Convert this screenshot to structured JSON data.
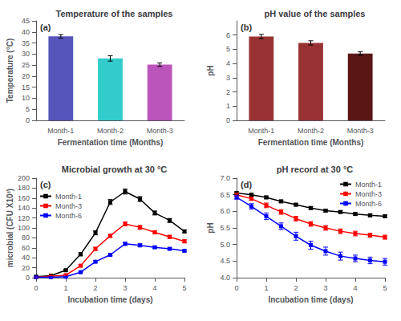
{
  "chart_data": [
    {
      "type": "bar",
      "title": "Temperature of the samples",
      "xlabel": "Fermentation time (Months)",
      "ylabel": "Temperature (°C)",
      "categories": [
        "Month-1",
        "Month-2",
        "Month-3"
      ],
      "values": [
        38.0,
        28.0,
        25.2
      ],
      "errors": [
        0.8,
        1.2,
        0.8
      ],
      "colors": [
        "#5555bb",
        "#33cccc",
        "#bb55bb"
      ],
      "ylim": [
        0,
        45
      ],
      "yticks": [
        0,
        5,
        10,
        15,
        20,
        25,
        30,
        35,
        40,
        45
      ],
      "grid": false,
      "annotation": "(a)"
    },
    {
      "type": "bar",
      "title": "pH value of the samples",
      "xlabel": "Fermentation time (Months)",
      "ylabel": "pH",
      "categories": [
        "Month-1",
        "Month-2",
        "Month-3"
      ],
      "values": [
        5.9,
        5.45,
        4.7
      ],
      "errors": [
        0.15,
        0.15,
        0.12
      ],
      "colors": [
        "#993333",
        "#993333",
        "#5a1515"
      ],
      "ylim": [
        0,
        7
      ],
      "yticks": [
        0,
        1,
        2,
        3,
        4,
        5,
        6
      ],
      "grid": false,
      "annotation": "(b)"
    },
    {
      "type": "line",
      "title": "Microbial growth at 30 °C",
      "xlabel": "Incubation time (days)",
      "ylabel": "microbial (CFU X10³)",
      "xlim": [
        0,
        5
      ],
      "ylim": [
        0,
        200
      ],
      "xticks": [
        0,
        1,
        2,
        3,
        4,
        5
      ],
      "yticks": [
        0,
        20,
        40,
        60,
        80,
        100,
        120,
        140,
        160,
        180,
        200
      ],
      "x": [
        0,
        0.5,
        1.0,
        1.5,
        2.0,
        2.5,
        3.0,
        3.5,
        4.0,
        4.5,
        5.0
      ],
      "marker": "square",
      "legend": "upper left",
      "grid": false,
      "annotation": "(c)",
      "series": [
        {
          "name": "Month-1",
          "color": "black",
          "values": [
            2,
            4,
            15,
            47,
            90,
            152,
            173,
            158,
            130,
            115,
            93
          ],
          "errors": [
            1,
            1,
            2,
            3,
            4,
            5,
            5,
            5,
            4,
            4,
            3
          ]
        },
        {
          "name": "Month-3",
          "color": "red",
          "values": [
            1,
            3,
            5,
            24,
            58,
            84,
            108,
            101,
            91,
            82,
            73
          ],
          "errors": [
            1,
            1,
            1,
            2,
            3,
            3,
            4,
            4,
            3,
            3,
            3
          ]
        },
        {
          "name": "Month-6",
          "color": "blue",
          "values": [
            1,
            1,
            2,
            11,
            32,
            46,
            68,
            65,
            61,
            58,
            54
          ],
          "errors": [
            1,
            1,
            1,
            1,
            2,
            2,
            3,
            3,
            2,
            2,
            2
          ]
        }
      ]
    },
    {
      "type": "line",
      "title": "pH record at 30 °C",
      "xlabel": "Incubation time (days)",
      "ylabel": "pH",
      "xlim": [
        0,
        5
      ],
      "ylim": [
        4.0,
        7.0
      ],
      "xticks": [
        0,
        1,
        2,
        3,
        4,
        5
      ],
      "yticks": [
        {
          "value": 4.0,
          "label": "4.0"
        },
        4.5,
        {
          "value": 5.0,
          "label": "5.0"
        },
        5.5,
        {
          "value": 6.0,
          "label": "6.0"
        },
        6.5,
        {
          "value": 7.0,
          "label": "7.0"
        }
      ],
      "x": [
        0,
        0.5,
        1.0,
        1.5,
        2.0,
        2.5,
        3.0,
        3.5,
        4.0,
        4.5,
        5.0
      ],
      "marker": "square",
      "legend": "upper right",
      "grid": false,
      "annotation": "(d)",
      "series": [
        {
          "name": "Month-1",
          "color": "black",
          "values": [
            6.55,
            6.5,
            6.42,
            6.3,
            6.2,
            6.1,
            6.02,
            5.98,
            5.92,
            5.88,
            5.85
          ],
          "errors": [
            0.04,
            0.04,
            0.04,
            0.04,
            0.04,
            0.04,
            0.04,
            0.04,
            0.04,
            0.04,
            0.04
          ]
        },
        {
          "name": "Month-3",
          "color": "red",
          "values": [
            6.5,
            6.38,
            6.18,
            5.98,
            5.78,
            5.62,
            5.5,
            5.4,
            5.33,
            5.28,
            5.22
          ],
          "errors": [
            0.04,
            0.05,
            0.07,
            0.07,
            0.07,
            0.07,
            0.07,
            0.07,
            0.07,
            0.06,
            0.06
          ]
        },
        {
          "name": "Month-6",
          "color": "blue",
          "values": [
            6.42,
            6.15,
            5.85,
            5.55,
            5.25,
            4.98,
            4.8,
            4.65,
            4.58,
            4.52,
            4.48
          ],
          "errors": [
            0.05,
            0.08,
            0.1,
            0.1,
            0.12,
            0.12,
            0.12,
            0.12,
            0.1,
            0.1,
            0.1
          ]
        }
      ]
    }
  ]
}
